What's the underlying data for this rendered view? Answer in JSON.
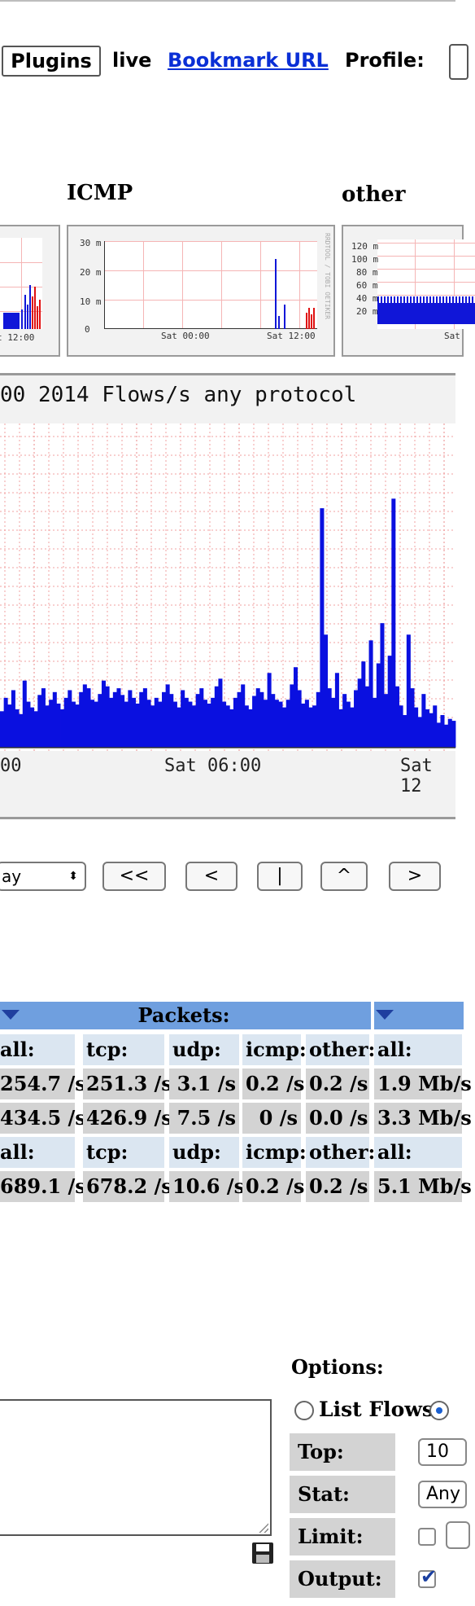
{
  "nav": {
    "plugins_label": "Plugins",
    "live_label": "live",
    "bookmark_label": "Bookmark URL",
    "profile_label": "Profile:"
  },
  "thumbs": [
    {
      "title": "",
      "tick_label": "t 12:00"
    },
    {
      "title": "ICMP",
      "y_ticks": [
        "30 m",
        "20 m",
        "10 m",
        "0"
      ],
      "x_ticks": [
        "Sat 00:00",
        "Sat 12:00"
      ],
      "side": "RRDTOOL / TOBI OETIKER"
    },
    {
      "title": "other",
      "y_ticks": [
        "120 m",
        "100 m",
        "80 m",
        "60 m",
        "40 m",
        "20 m"
      ],
      "x_ticks": [
        "Sat"
      ]
    }
  ],
  "main_graph": {
    "title": "00 2014 Flows/s any protocol",
    "x_ticks": [
      "00",
      "Sat 06:00",
      "Sat 12"
    ],
    "colors": {
      "series": "#0a10e0",
      "grid": "#f2a0a0"
    }
  },
  "controls": {
    "select_value": "ay",
    "buttons": [
      "<<",
      "<",
      "|",
      "^",
      ">"
    ]
  },
  "stats": {
    "packets_header": "Packets:",
    "header_cols": [
      "all:",
      "tcp:",
      "udp:",
      "icmp:",
      "other:",
      "all:"
    ],
    "rows": [
      [
        "254.7 /s",
        "251.3 /s",
        "3.1 /s",
        "0.2 /s",
        "0.2 /s",
        "1.9 Mb/s"
      ],
      [
        "434.5 /s",
        "426.9 /s",
        "7.5 /s",
        "0 /s",
        "0.0 /s",
        "3.3 Mb/s"
      ]
    ],
    "header_cols_2": [
      "all:",
      "tcp:",
      "udp:",
      "icmp:",
      "other:",
      "all:"
    ],
    "total_row": [
      "689.1 /s",
      "678.2 /s",
      "10.6 /s",
      "0.2 /s",
      "0.2 /s",
      "5.1 Mb/s"
    ]
  },
  "options": {
    "title": "Options:",
    "list_flows_label": "List Flows",
    "top_label": "Top:",
    "top_value": "10",
    "stat_label": "Stat:",
    "stat_value": "Any",
    "limit_label": "Limit:",
    "output_label": "Output:"
  },
  "chart_data": {
    "type": "bar",
    "title": "00 2014 Flows/s any protocol",
    "x_tick_labels": [
      "00",
      "Sat 06:00",
      "Sat 12"
    ],
    "values": [
      38,
      52,
      45,
      60,
      40,
      35,
      70,
      48,
      42,
      38,
      55,
      62,
      44,
      50,
      58,
      46,
      40,
      52,
      60,
      48,
      45,
      58,
      66,
      62,
      50,
      48,
      56,
      70,
      64,
      52,
      58,
      62,
      55,
      48,
      60,
      52,
      46,
      58,
      62,
      50,
      44,
      52,
      48,
      58,
      66,
      56,
      48,
      42,
      60,
      52,
      48,
      44,
      56,
      62,
      50,
      46,
      52,
      64,
      72,
      48,
      44,
      40,
      52,
      58,
      66,
      44,
      40,
      54,
      62,
      58,
      50,
      78,
      56,
      50,
      48,
      42,
      50,
      66,
      84,
      60,
      46,
      50,
      42,
      44,
      58,
      250,
      118,
      62,
      52,
      78,
      40,
      56,
      48,
      42,
      60,
      72,
      90,
      64,
      112,
      52,
      88,
      130,
      56,
      96,
      260,
      64,
      44,
      34,
      118,
      62,
      42,
      32,
      56,
      40,
      36,
      44,
      26,
      34,
      24,
      30,
      28
    ],
    "ylim": [
      0,
      330
    ]
  }
}
